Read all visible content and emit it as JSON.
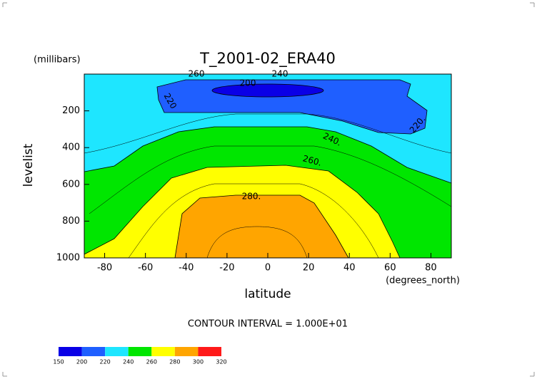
{
  "chart_data": {
    "type": "contour",
    "title": "T_2001-02_ERA40",
    "y_unit": "(millibars)",
    "y_label": "levelist",
    "x_label": "latitude",
    "x_unit": "(degrees_north)",
    "footnote": "CONTOUR INTERVAL = 1.000E+01",
    "xlim": [
      -90,
      90
    ],
    "xticks": [
      -80,
      -60,
      -40,
      -20,
      0,
      20,
      40,
      60,
      80
    ],
    "ylim": [
      1000,
      0
    ],
    "yticks": [
      200,
      400,
      600,
      800,
      1000
    ],
    "colorbar": {
      "levels": [
        150,
        200,
        220,
        240,
        260,
        280,
        300,
        320
      ],
      "colors": [
        "#0a00e6",
        "#1f5fff",
        "#1ee6ff",
        "#00e600",
        "#ffff00",
        "#ffa500",
        "#ff1a1a"
      ]
    },
    "contour_labels": [
      "260",
      "240",
      "200",
      "220",
      "220.",
      "240.",
      "260.",
      "280."
    ]
  }
}
